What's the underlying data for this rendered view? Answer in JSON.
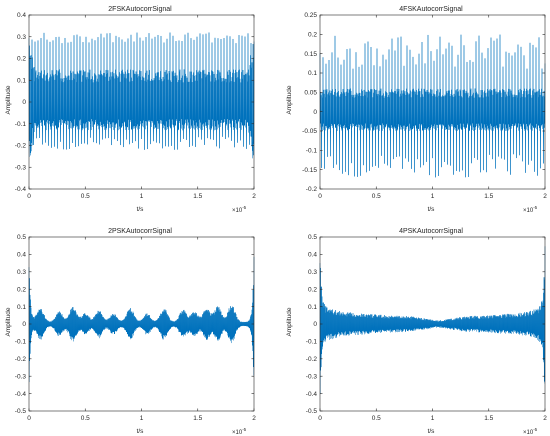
{
  "chart_data": [
    {
      "type": "line",
      "title": "2FSKAutocorrSignal",
      "xlabel": "t/s",
      "ylabel": "Amplitude",
      "xlim": [
        0,
        2
      ],
      "ylim": [
        -0.4,
        0.4
      ],
      "xticks": [
        0,
        0.5,
        1,
        1.5,
        2
      ],
      "xtick_labels": [
        "0",
        "0.5",
        "1",
        "1.5",
        "2"
      ],
      "yticks": [
        -0.4,
        -0.3,
        -0.2,
        -0.1,
        0,
        0.1,
        0.2,
        0.3,
        0.4
      ],
      "ytick_labels": [
        "-0.4",
        "-0.3",
        "-0.2",
        "-0.1",
        "0",
        "0.1",
        "0.2",
        "0.3",
        "0.4"
      ],
      "x_exponent_base": "×10",
      "x_exponent": "-5",
      "grid": false,
      "color": "#0072BD",
      "envelope": {
        "x": [
          0,
          0.05,
          1.95,
          2
        ],
        "upper": [
          0.33,
          0.15,
          0.15,
          0.33
        ],
        "lower": [
          -0.32,
          -0.13,
          -0.13,
          -0.32
        ]
      },
      "spikes": {
        "upper_range": [
          0.27,
          0.32
        ],
        "lower_range": [
          -0.16,
          -0.22
        ]
      }
    },
    {
      "type": "line",
      "title": "4FSKAutocorrSignal",
      "xlabel": "t/s",
      "ylabel": "Amplitude",
      "xlim": [
        0,
        2
      ],
      "ylim": [
        -0.2,
        0.25
      ],
      "xticks": [
        0,
        0.5,
        1,
        1.5,
        2
      ],
      "xtick_labels": [
        "0",
        "0.5",
        "1",
        "1.5",
        "2"
      ],
      "yticks": [
        -0.2,
        -0.15,
        -0.1,
        -0.05,
        0,
        0.05,
        0.1,
        0.15,
        0.2,
        0.25
      ],
      "ytick_labels": [
        "-0.2",
        "-0.15",
        "-0.1",
        "-0.05",
        "0",
        "0.05",
        "0.1",
        "0.15",
        "0.2",
        "0.25"
      ],
      "x_exponent_base": "×10",
      "x_exponent": "-5",
      "grid": false,
      "color": "#0072BD",
      "envelope": {
        "x": [
          0,
          2
        ],
        "upper": [
          0.06,
          0.06
        ],
        "lower": [
          -0.05,
          -0.05
        ]
      },
      "spikes": {
        "upper_range": [
          0.11,
          0.2
        ],
        "lower_range": [
          -0.11,
          -0.17
        ]
      }
    },
    {
      "type": "line",
      "title": "2PSKAutocorrSignal",
      "xlabel": "t/s",
      "ylabel": "Amplitude",
      "xlim": [
        0,
        2
      ],
      "ylim": [
        -0.5,
        0.5
      ],
      "xticks": [
        0,
        0.5,
        1,
        1.5,
        2
      ],
      "xtick_labels": [
        "0",
        "0.5",
        "1",
        "1.5",
        "2"
      ],
      "yticks": [
        -0.5,
        -0.4,
        -0.3,
        -0.2,
        -0.1,
        0,
        0.1,
        0.2,
        0.3,
        0.4,
        0.5
      ],
      "ytick_labels": [
        "-0.5",
        "-0.4",
        "-0.3",
        "-0.2",
        "-0.1",
        "0",
        "0.1",
        "0.2",
        "0.3",
        "0.4",
        "0.5"
      ],
      "x_exponent_base": "×10",
      "x_exponent": "-5",
      "grid": false,
      "color": "#0072BD",
      "edge_peak": 0.42,
      "lobes": [
        {
          "center": 0.1,
          "height": 0.08
        },
        {
          "center": 0.27,
          "height": 0.06
        },
        {
          "center": 0.39,
          "height": 0.09
        },
        {
          "center": 0.5,
          "height": 0.05
        },
        {
          "center": 0.62,
          "height": 0.07
        },
        {
          "center": 0.75,
          "height": 0.05
        },
        {
          "center": 0.9,
          "height": 0.08
        },
        {
          "center": 1.05,
          "height": 0.05
        },
        {
          "center": 1.2,
          "height": 0.08
        },
        {
          "center": 1.37,
          "height": 0.07
        },
        {
          "center": 1.47,
          "height": 0.06
        },
        {
          "center": 1.58,
          "height": 0.08
        },
        {
          "center": 1.68,
          "height": 0.09
        },
        {
          "center": 1.8,
          "height": 0.1
        }
      ]
    },
    {
      "type": "line",
      "title": "4PSKAutocorrSignal",
      "xlabel": "t/s",
      "ylabel": "Amplitude",
      "xlim": [
        0,
        2
      ],
      "ylim": [
        -0.5,
        0.5
      ],
      "xticks": [
        0,
        0.5,
        1,
        1.5,
        2
      ],
      "xtick_labels": [
        "0",
        "0.5",
        "1",
        "1.5",
        "2"
      ],
      "yticks": [
        -0.5,
        -0.4,
        -0.3,
        -0.2,
        -0.1,
        0,
        0.1,
        0.2,
        0.3,
        0.4,
        0.5
      ],
      "ytick_labels": [
        "-0.5",
        "-0.4",
        "-0.3",
        "-0.2",
        "-0.1",
        "0",
        "0.1",
        "0.2",
        "0.3",
        "0.4",
        "0.5"
      ],
      "x_exponent_base": "×10",
      "x_exponent": "-5",
      "grid": false,
      "color": "#0072BD",
      "edge_peak": 0.42,
      "envelope": {
        "x": [
          0.04,
          0.2,
          0.4,
          0.6,
          0.8,
          0.95,
          1.05,
          1.15,
          1.3,
          1.5,
          1.7,
          1.85,
          1.96
        ],
        "upper": [
          0.1,
          0.07,
          0.06,
          0.05,
          0.045,
          0.03,
          0.02,
          0.03,
          0.045,
          0.05,
          0.06,
          0.07,
          0.1
        ]
      }
    }
  ]
}
